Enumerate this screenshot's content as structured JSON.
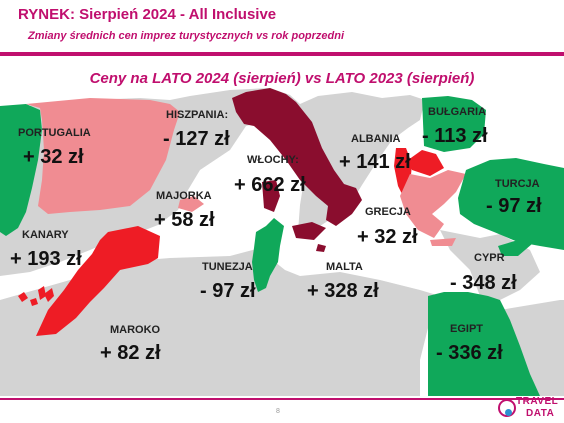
{
  "header": {
    "title": "RYNEK: Sierpień 2024 - All Inclusive",
    "subtitle": "Zmiany średnich cen imprez turystycznych vs rok poprzedni"
  },
  "map": {
    "heading": "Ceny na LATO 2024 (sierpień) vs  LATO 2023 (sierpień)",
    "legend_colors": {
      "increase": "#10a85a",
      "large_decrease": "#8a0d2e",
      "decrease": "#ee1c25",
      "small_decrease": "#f08c92",
      "land": "#d3d3d3",
      "sea": "#ffffff"
    },
    "countries": [
      {
        "id": "portugalia",
        "name": "PORTUGALIA",
        "value": "+ 32 zł"
      },
      {
        "id": "hiszpania",
        "name": "HISZPANIA:",
        "value": "- 127 zł"
      },
      {
        "id": "wlochy",
        "name": "WŁOCHY:",
        "value": "+ 662 zł"
      },
      {
        "id": "albania",
        "name": "ALBANIA",
        "value": "+ 141 zł"
      },
      {
        "id": "bulgaria",
        "name": "BUŁGARIA",
        "value": "- 113 zł"
      },
      {
        "id": "majorka",
        "name": "MAJORKA",
        "value": "+ 58 zł"
      },
      {
        "id": "turcja",
        "name": "TURCJA",
        "value": "- 97 zł"
      },
      {
        "id": "grecja",
        "name": "GRECJA",
        "value": "+ 32 zł"
      },
      {
        "id": "kanary",
        "name": "KANARY",
        "value": "+ 193 zł"
      },
      {
        "id": "tunezja",
        "name": "TUNEZJA",
        "value": "- 97 zł"
      },
      {
        "id": "malta",
        "name": "MALTA",
        "value": "+ 328 zł"
      },
      {
        "id": "cypr",
        "name": "CYPR",
        "value": "- 348 zł"
      },
      {
        "id": "maroko",
        "name": "MAROKO",
        "value": "+ 82 zł"
      },
      {
        "id": "egipt",
        "name": "EGIPT",
        "value": "- 336 zł"
      }
    ]
  },
  "footer": {
    "page_number": "8",
    "logo_line1": "TRAVEL",
    "logo_line2": "DATA"
  }
}
